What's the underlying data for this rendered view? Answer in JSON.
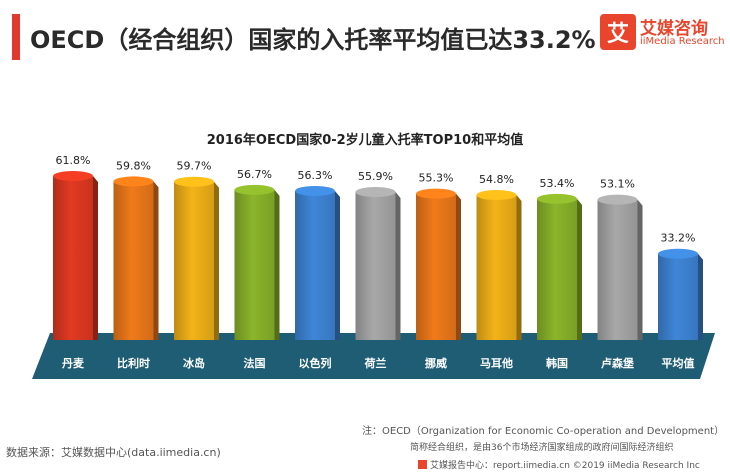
{
  "header": {
    "title": "OECD（经合组织）国家的入托率平均值已达33.2%"
  },
  "logo": {
    "mark": "艾",
    "name_cn": "艾媒咨询",
    "name_en": "iiMedia Research"
  },
  "chart_data": {
    "type": "bar",
    "title": "2016年OECD国家0-2岁儿童入托率TOP10和平均值",
    "categories": [
      "丹麦",
      "比利时",
      "冰岛",
      "法国",
      "以色列",
      "荷兰",
      "挪威",
      "马耳他",
      "韩国",
      "卢森堡",
      "平均值"
    ],
    "values": [
      61.8,
      59.8,
      59.7,
      56.7,
      56.3,
      55.9,
      55.3,
      54.8,
      53.4,
      53.1,
      33.2
    ],
    "value_labels": [
      "61.8%",
      "59.8%",
      "59.7%",
      "56.7%",
      "56.3%",
      "55.9%",
      "55.3%",
      "54.8%",
      "53.4%",
      "53.1%",
      "33.2%"
    ],
    "bar_colors": [
      "#e23a22",
      "#f07a1a",
      "#f3b318",
      "#8bb52a",
      "#3f86d8",
      "#a8a8a8",
      "#f07a1a",
      "#f3b318",
      "#8bb52a",
      "#a8a8a8",
      "#3f86d8"
    ],
    "floor_color": "#1f5d74",
    "ylim": [
      0,
      61.8
    ],
    "xlabel": "",
    "ylabel": ""
  },
  "notes": {
    "line1": "注：OECD（Organization for Economic Co-operation and Development）",
    "line2": "简称经合组织，是由36个市场经济国家组成的政府间国际经济组织"
  },
  "source": "数据来源：艾媒数据中心(data.iimedia.cn)",
  "footer": "艾媒报告中心：report.iimedia.cn ©2019 iiMedia Research Inc"
}
